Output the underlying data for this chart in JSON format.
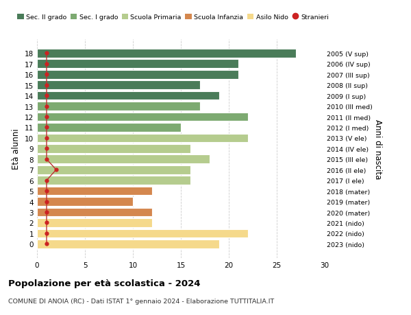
{
  "ages": [
    18,
    17,
    16,
    15,
    14,
    13,
    12,
    11,
    10,
    9,
    8,
    7,
    6,
    5,
    4,
    3,
    2,
    1,
    0
  ],
  "values": [
    27,
    21,
    21,
    17,
    19,
    17,
    22,
    15,
    22,
    16,
    18,
    16,
    16,
    12,
    10,
    12,
    12,
    22,
    19
  ],
  "stranieri": [
    1,
    1,
    1,
    1,
    1,
    1,
    1,
    1,
    1,
    1,
    1,
    2,
    1,
    1,
    1,
    1,
    1,
    1,
    1
  ],
  "bar_colors": [
    "#4a7c59",
    "#4a7c59",
    "#4a7c59",
    "#4a7c59",
    "#4a7c59",
    "#7daa71",
    "#7daa71",
    "#7daa71",
    "#b5cc8e",
    "#b5cc8e",
    "#b5cc8e",
    "#b5cc8e",
    "#b5cc8e",
    "#d4874e",
    "#d4874e",
    "#d4874e",
    "#f5d98b",
    "#f5d98b",
    "#f5d98b"
  ],
  "right_labels": [
    "2005 (V sup)",
    "2006 (IV sup)",
    "2007 (III sup)",
    "2008 (II sup)",
    "2009 (I sup)",
    "2010 (III med)",
    "2011 (II med)",
    "2012 (I med)",
    "2013 (V ele)",
    "2014 (IV ele)",
    "2015 (III ele)",
    "2016 (II ele)",
    "2017 (I ele)",
    "2018 (mater)",
    "2019 (mater)",
    "2020 (mater)",
    "2021 (nido)",
    "2022 (nido)",
    "2023 (nido)"
  ],
  "legend_labels": [
    "Sec. II grado",
    "Sec. I grado",
    "Scuola Primaria",
    "Scuola Infanzia",
    "Asilo Nido",
    "Stranieri"
  ],
  "legend_colors": [
    "#4a7c59",
    "#7daa71",
    "#b5cc8e",
    "#d4874e",
    "#f5d98b",
    "#cc2222"
  ],
  "ylabel": "Età alunni",
  "right_ylabel": "Anni di nascita",
  "title": "Popolazione per età scolastica - 2024",
  "subtitle": "COMUNE DI ANOIA (RC) - Dati ISTAT 1° gennaio 2024 - Elaborazione TUTTITALIA.IT",
  "xlim": [
    0,
    30
  ],
  "xticks": [
    0,
    5,
    10,
    15,
    20,
    25,
    30
  ],
  "background_color": "#ffffff",
  "grid_color": "#cccccc",
  "stranieri_color": "#cc2222",
  "stranieri_line_color": "#bb3333"
}
